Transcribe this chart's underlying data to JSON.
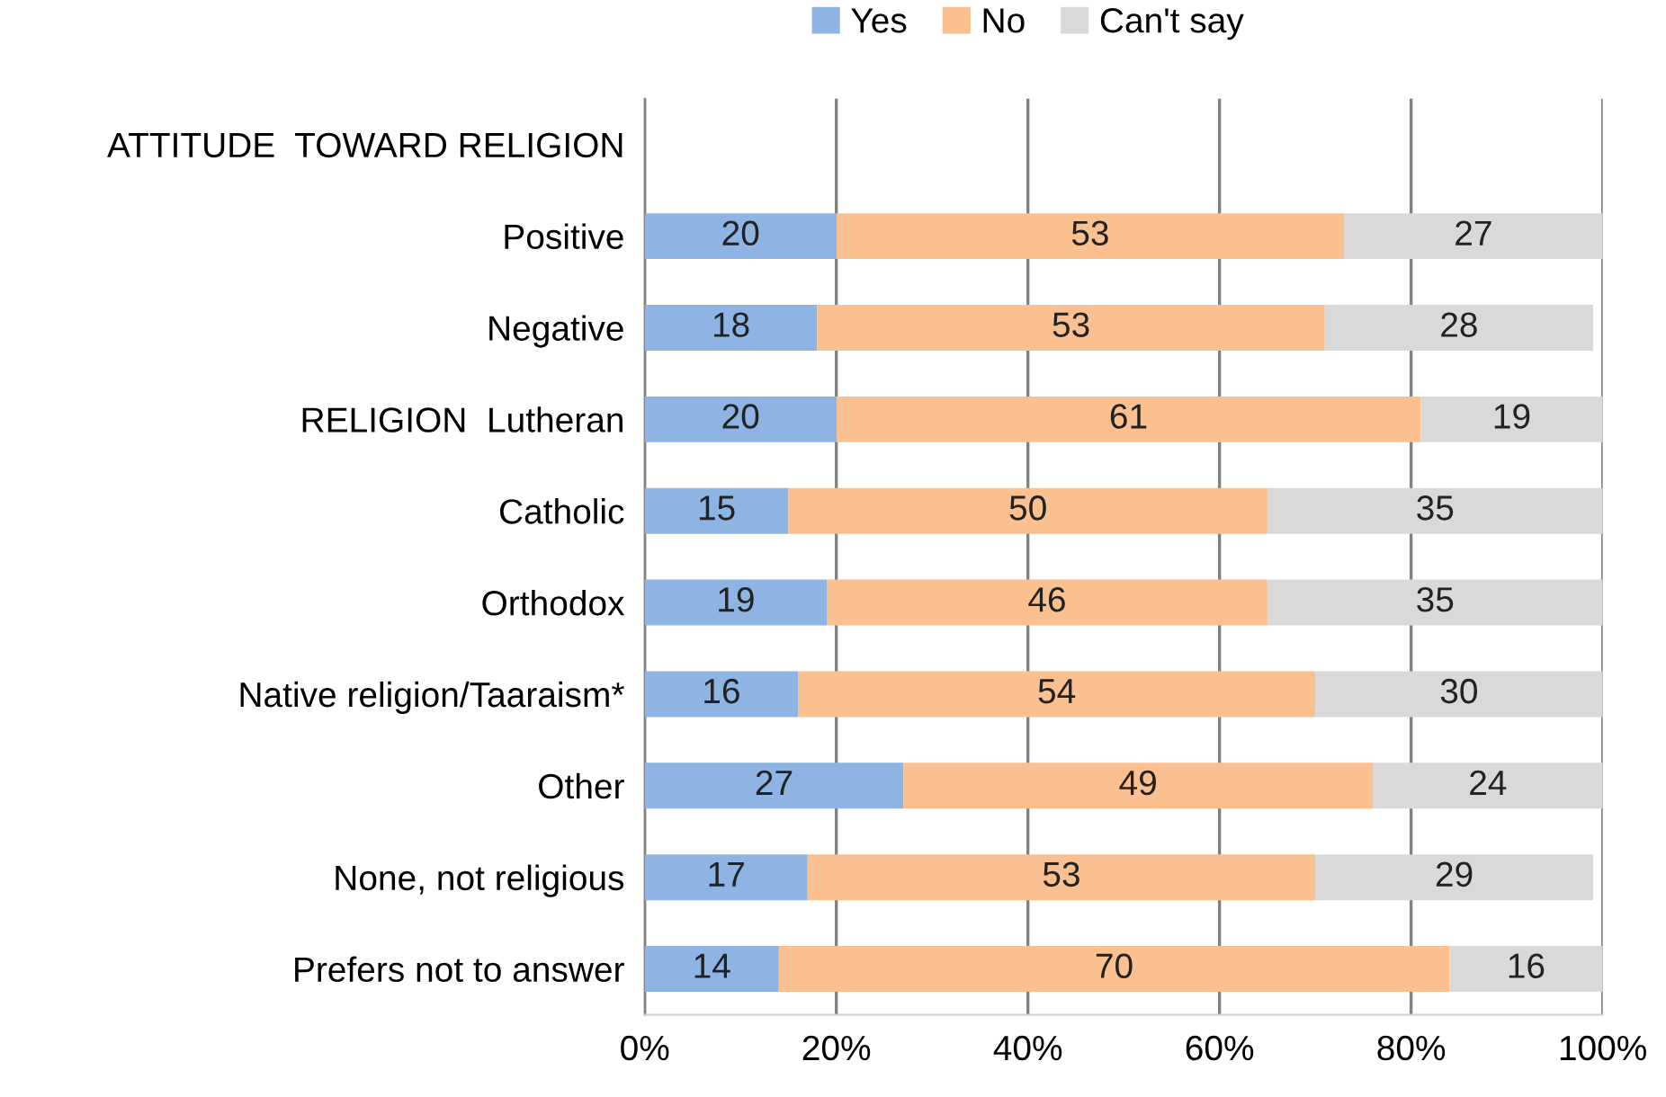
{
  "chart_data": {
    "type": "bar",
    "orientation": "horizontal",
    "stacked": true,
    "categories": [
      "ATTITUDE  TOWARD RELIGION",
      "Positive",
      "Negative",
      "RELIGION  Lutheran",
      "Catholic",
      "Orthodox",
      "Native religion/Taaraism*",
      "Other",
      "None, not religious",
      "Prefers not to answer"
    ],
    "series": [
      {
        "name": "Yes",
        "color": "#8eb4e3",
        "values": [
          null,
          20,
          18,
          20,
          15,
          19,
          16,
          27,
          17,
          14
        ]
      },
      {
        "name": "No",
        "color": "#fac090",
        "values": [
          null,
          53,
          53,
          61,
          50,
          46,
          54,
          49,
          53,
          70
        ]
      },
      {
        "name": "Can't say",
        "color": "#d9d9d9",
        "values": [
          null,
          27,
          28,
          19,
          35,
          35,
          30,
          24,
          29,
          16
        ]
      }
    ],
    "xlim": [
      0,
      100
    ],
    "xticks": [
      {
        "value": 0,
        "label": "0%"
      },
      {
        "value": 20,
        "label": "20%"
      },
      {
        "value": 40,
        "label": "40%"
      },
      {
        "value": 60,
        "label": "60%"
      },
      {
        "value": 80,
        "label": "80%"
      },
      {
        "value": 100,
        "label": "100%"
      }
    ],
    "grid": "x",
    "legend": "top",
    "data_labels": true
  }
}
